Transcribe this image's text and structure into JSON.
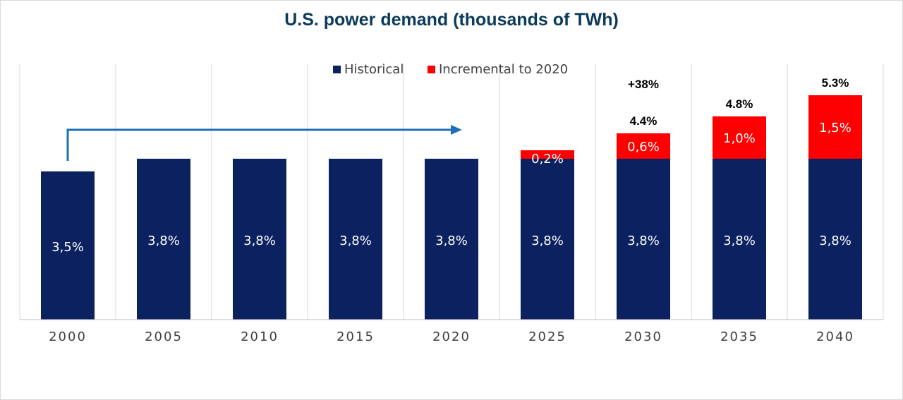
{
  "chart_data": {
    "type": "bar",
    "stacked": true,
    "title": "U.S. power demand (thousands of TWh)",
    "xlabel": "",
    "ylabel": "",
    "ylim": [
      0,
      6
    ],
    "grid": "vertical",
    "categories": [
      "2000",
      "2005",
      "2010",
      "2015",
      "2020",
      "2025",
      "2030",
      "2035",
      "2040"
    ],
    "series": [
      {
        "name": "Historical",
        "color": "#0b2160",
        "values": [
          3.5,
          3.8,
          3.8,
          3.8,
          3.8,
          3.8,
          3.8,
          3.8,
          3.8
        ],
        "labels": [
          "3,5%",
          "3,8%",
          "3,8%",
          "3,8%",
          "3,8%",
          "3,8%",
          "3,8%",
          "3,8%",
          "3,8%"
        ]
      },
      {
        "name": "Incremental to 2020",
        "color": "#ff0000",
        "values": [
          0,
          0,
          0,
          0,
          0,
          0.2,
          0.6,
          1.0,
          1.5
        ],
        "labels": [
          "",
          "",
          "",
          "",
          "",
          "0,2%",
          "0,6%",
          "1,0%",
          "1,5%"
        ]
      }
    ],
    "totals": [
      "",
      "",
      "",
      "",
      "",
      "",
      "4.4%",
      "4.8%",
      "5.3%"
    ],
    "legend": {
      "position": "top-center",
      "items": [
        "Historical",
        "Incremental to 2020"
      ]
    },
    "annotations": {
      "growth_label": "+38%",
      "arrow": {
        "from": "2000",
        "to": "2020",
        "color": "#1c6fb8"
      }
    }
  }
}
